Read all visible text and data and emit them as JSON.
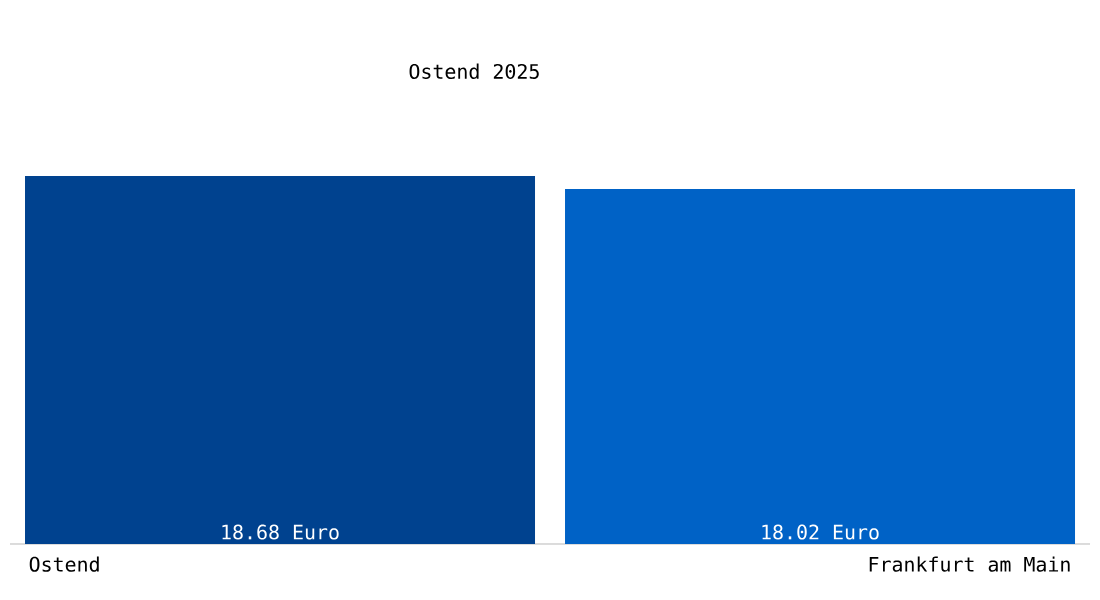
{
  "chart_data": {
    "type": "bar",
    "title": "Ostend 2025",
    "categories": [
      "Ostend",
      "Frankfurt am Main"
    ],
    "values": [
      18.68,
      18.02
    ],
    "colors": [
      "#00428f",
      "#0062c6"
    ],
    "value_labels": [
      "18.68 Euro",
      "18.02 Euro"
    ]
  }
}
